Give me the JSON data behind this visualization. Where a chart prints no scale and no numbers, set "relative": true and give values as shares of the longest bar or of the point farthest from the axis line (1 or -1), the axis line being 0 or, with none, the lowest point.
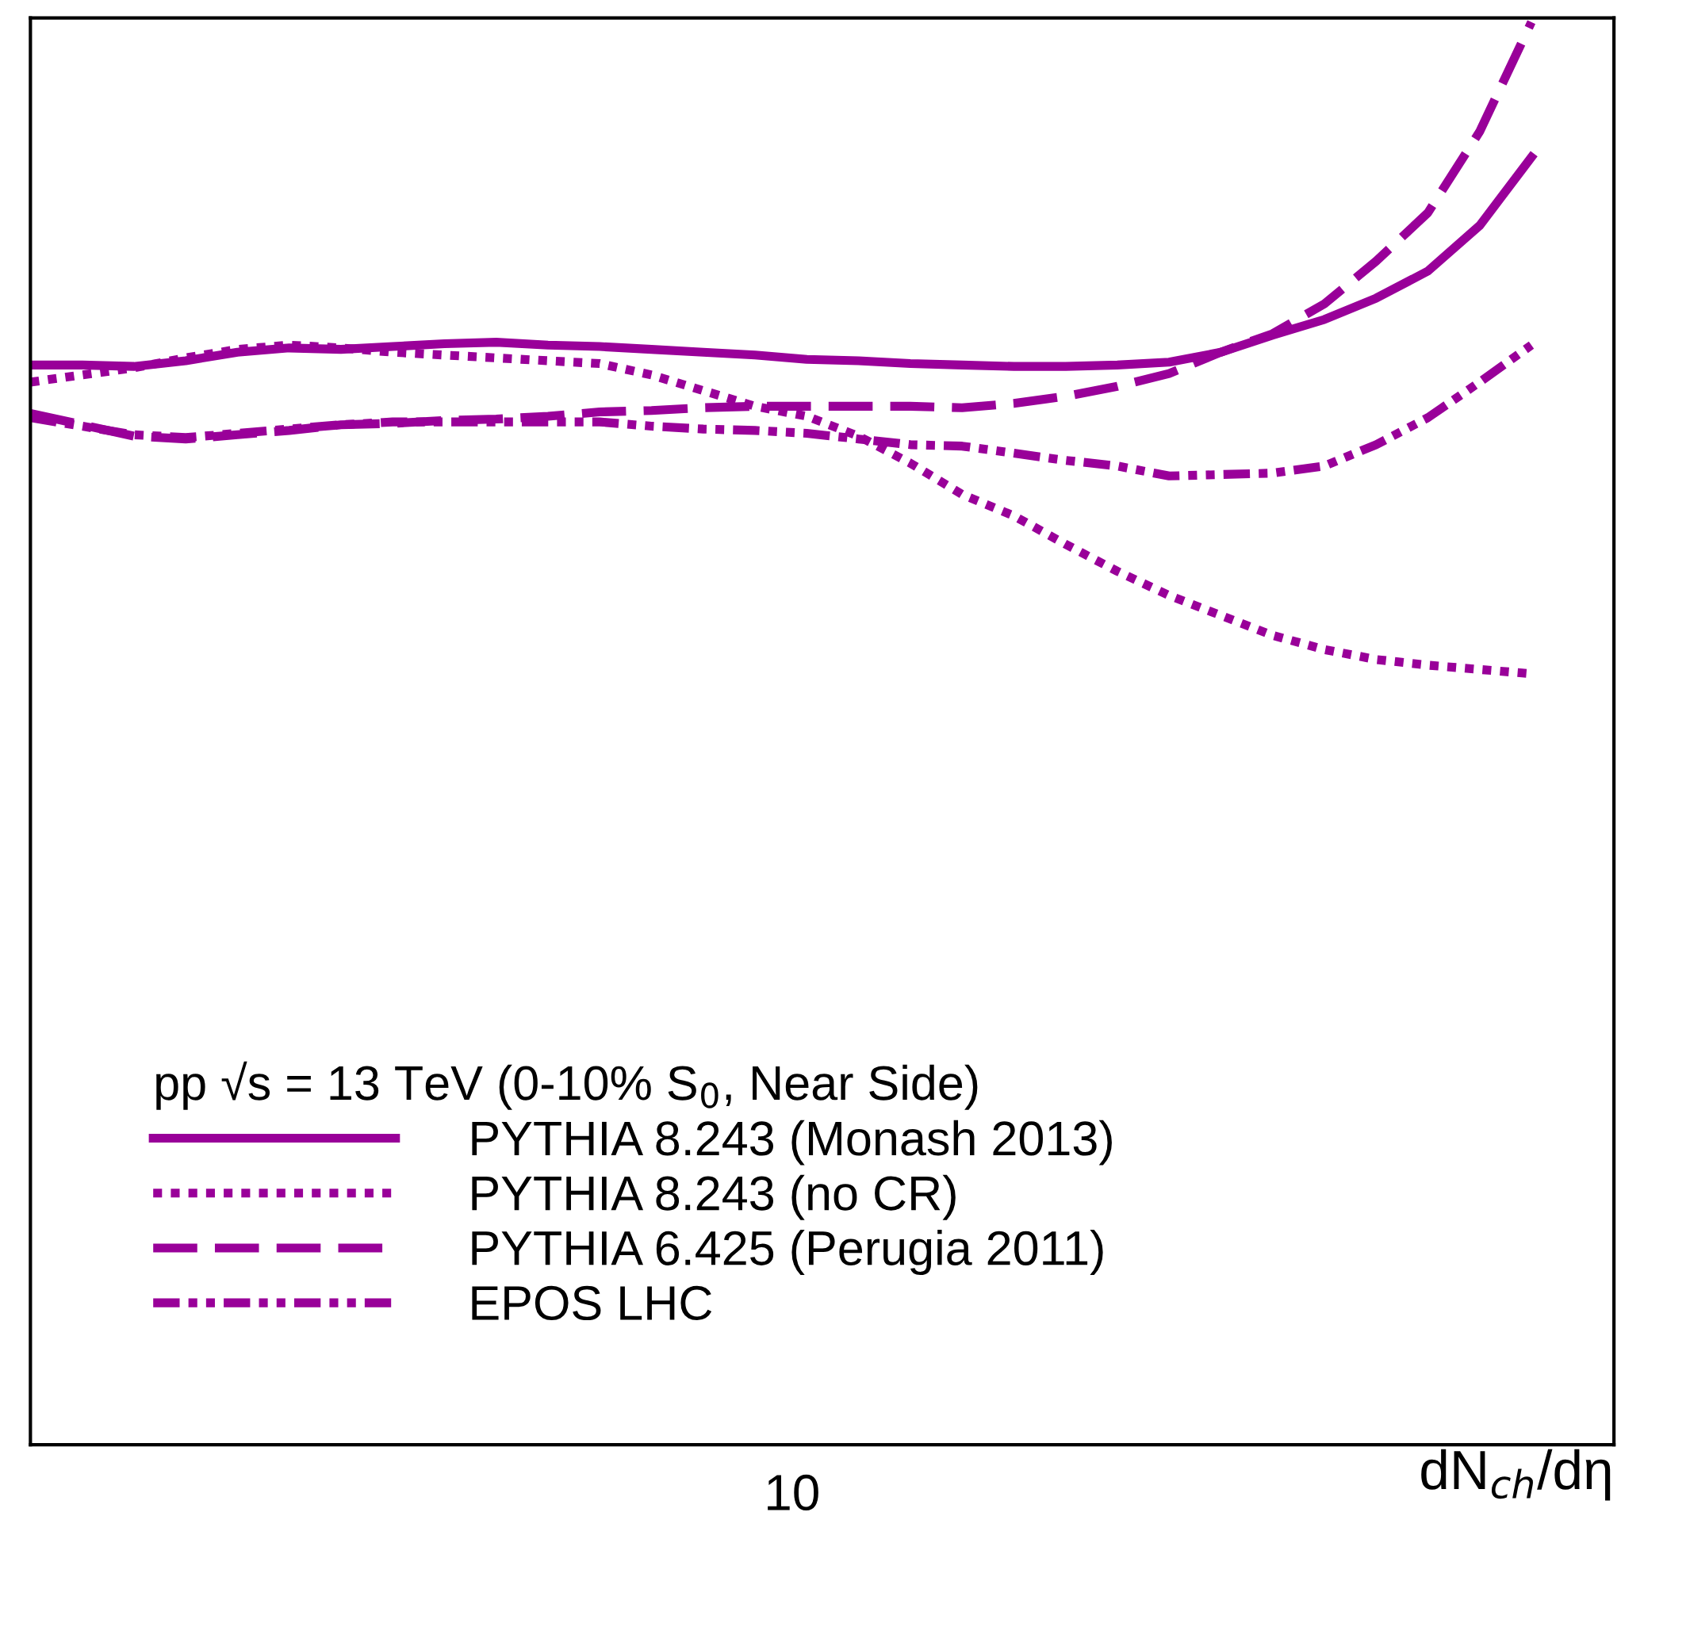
{
  "chart_data": {
    "type": "line",
    "relative": true,
    "xlabel": "dN$_{ch}$/dη",
    "legend_title": "pp √s = 13 TeV (0-10% S$_{0}$, Near Side)",
    "annotations": [
      "10"
    ],
    "tick_labels": false,
    "grid": false,
    "legend": "bottom left",
    "marker": "none",
    "categories": [
      null,
      null,
      null,
      null,
      null,
      null,
      null,
      null,
      null,
      null,
      null,
      null,
      null,
      null,
      null,
      null,
      null,
      null,
      null,
      null,
      null,
      null,
      null,
      null,
      null,
      null,
      null,
      null,
      null,
      null
    ],
    "series": [
      {
        "name": "PYTHIA 8.243 (Monash 2013)",
        "color": "#990099",
        "line_style": "solid",
        "values": [
          0.759,
          0.759,
          0.758,
          0.762,
          0.768,
          0.771,
          0.77,
          0.772,
          0.774,
          0.775,
          0.773,
          0.772,
          0.77,
          0.768,
          0.766,
          0.763,
          0.762,
          0.76,
          0.759,
          0.758,
          0.758,
          0.759,
          0.761,
          0.768,
          0.78,
          0.791,
          0.806,
          0.825,
          0.857,
          0.905
        ]
      },
      {
        "name": "PYTHIA 8.243 (no CR)",
        "color": "#990099",
        "line_style": "dotted",
        "values": [
          0.747,
          0.752,
          0.757,
          0.764,
          0.77,
          0.773,
          0.771,
          0.768,
          0.766,
          0.764,
          0.762,
          0.76,
          0.752,
          0.741,
          0.73,
          0.723,
          0.709,
          0.69,
          0.668,
          0.653,
          0.633,
          0.614,
          0.597,
          0.583,
          0.569,
          0.559,
          0.552,
          0.548,
          0.545,
          0.542
        ]
      },
      {
        "name": "PYTHIA 6.425 (Perugia 2011)",
        "color": "#990099",
        "line_style": "dashed",
        "values": [
          0.725,
          0.717,
          0.709,
          0.707,
          0.71,
          0.713,
          0.717,
          0.718,
          0.72,
          0.721,
          0.723,
          0.726,
          0.727,
          0.729,
          0.73,
          0.73,
          0.73,
          0.73,
          0.729,
          0.732,
          0.737,
          0.744,
          0.753,
          0.768,
          0.781,
          0.802,
          0.832,
          0.866,
          0.923,
          1.0
        ]
      },
      {
        "name": "EPOS LHC",
        "color": "#990099",
        "line_style": "dashdotdot",
        "values": [
          0.722,
          0.716,
          0.71,
          0.708,
          0.711,
          0.714,
          0.717,
          0.719,
          0.719,
          0.719,
          0.719,
          0.719,
          0.716,
          0.714,
          0.713,
          0.711,
          0.707,
          0.703,
          0.702,
          0.697,
          0.692,
          0.688,
          0.681,
          0.682,
          0.683,
          0.688,
          0.703,
          0.722,
          0.747,
          0.773
        ]
      }
    ]
  }
}
